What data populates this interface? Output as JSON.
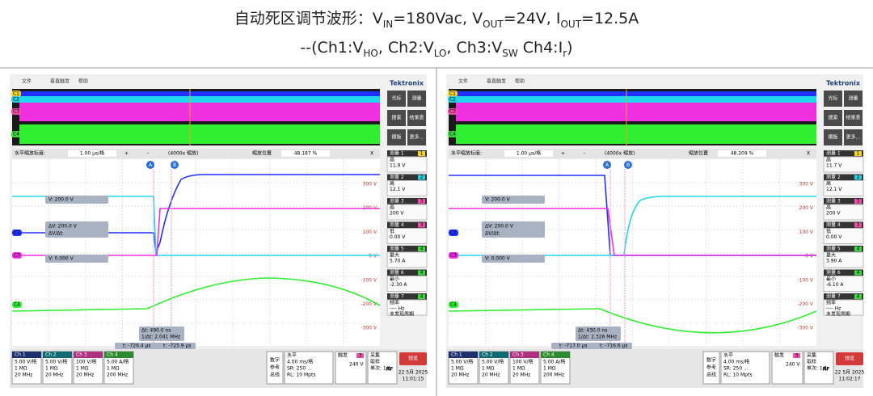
{
  "header": {
    "line1": [
      "自动死区调节波形：V",
      "IN",
      "=180Vac, V",
      "OUT",
      "=24V, I",
      "OUT",
      "=12.5A"
    ],
    "line2": [
      "--(Ch1:V",
      "HO",
      ", Ch2:V",
      "LO",
      ", Ch3:V",
      "SW",
      " Ch4:I",
      "r",
      ")"
    ]
  },
  "scopes": [
    {
      "menu": [
        "文件",
        "垂直触发",
        "帮助"
      ],
      "brand": "Tektronix",
      "overview_labels": [
        "C1",
        "C2",
        "C3",
        "C4"
      ],
      "buttons": [
        "光标",
        "测量",
        "搜索",
        "结果表",
        "模板",
        "更多..."
      ],
      "zoom": {
        "label": "水平缩放标度:",
        "scale": "1.00 μs/格",
        "plus": "+",
        "minus": "-",
        "factor": "(4000x 缩放)",
        "pos_label": "缩放位置",
        "pos": "48.187 %",
        "close": "X"
      },
      "markers": [
        "C1",
        "C3",
        "C4"
      ],
      "axis": [
        "300 V",
        "200 V",
        "100 V",
        "0 V",
        "-100 V",
        "-200 V",
        "-300 V"
      ],
      "cursors": {
        "a": "A",
        "b": "B",
        "v1": "V:   200.0 V",
        "dv": "ΔV:   200.0 V",
        "dvdt": "ΔV/Δt:",
        "v2": "V:   0.000 V",
        "dt": "Δt:   490.0 ns",
        "inv": "1/Δt: 2.041 MHz",
        "ta": "t: -726.4 μs",
        "tb": "t: -725.9 μs"
      },
      "measurements": [
        {
          "name": "测量 1",
          "ch": "1",
          "kind": "高",
          "value": "11.9 V"
        },
        {
          "name": "测量 2",
          "ch": "2",
          "kind": "高",
          "value": "12.1 V"
        },
        {
          "name": "测量 3",
          "ch": "3",
          "kind": "高",
          "value": "200 V"
        },
        {
          "name": "测量 4",
          "ch": "3",
          "kind": "低",
          "value": "0.00 V"
        },
        {
          "name": "测量 5",
          "ch": "4",
          "kind": "最大",
          "value": "5.70 A"
        },
        {
          "name": "测量 6",
          "ch": "4",
          "kind": "最小",
          "value": "-2.30 A"
        },
        {
          "name": "测量 7",
          "ch": "4",
          "kind": "频率",
          "value": "---- Hz",
          "note": "未发现周期"
        }
      ],
      "channel_settings": [
        {
          "name": "Ch 1",
          "lines": [
            "5.00 V/格",
            "1 MΩ",
            "20 MHz"
          ]
        },
        {
          "name": "Ch 2",
          "lines": [
            "5.00 V/格",
            "1 MΩ",
            "20 MHz"
          ]
        },
        {
          "name": "Ch 3",
          "lines": [
            "100 V/格",
            "1 MΩ",
            "20 MHz"
          ]
        },
        {
          "name": "Ch 4",
          "lines": [
            "5.00 A/格",
            "1 MΩ",
            "200 MHz"
          ]
        }
      ],
      "side_labels": [
        "数字",
        "参考",
        "总线"
      ],
      "horizontal": [
        "水平",
        "4.00 ms/格",
        "SR: 250 ...",
        "RL: 10 Mpts"
      ],
      "trigger": {
        "title": "触发",
        "ch": "3",
        "level": "240 V"
      },
      "acquire": [
        "采集",
        "取样",
        "单次: 1/1"
      ],
      "rf": "RF",
      "preview": "预览",
      "date": "22 5月 2025",
      "time": "11:01:15"
    },
    {
      "menu": [
        "文件",
        "垂直触发",
        "帮助"
      ],
      "brand": "Tektronix",
      "overview_labels": [
        "C1",
        "C2",
        "C3",
        "C4"
      ],
      "buttons": [
        "光标",
        "测量",
        "搜索",
        "结果表",
        "模板",
        "更多..."
      ],
      "zoom": {
        "label": "水平缩放标度:",
        "scale": "1.00 μs/格",
        "plus": "+",
        "minus": "-",
        "factor": "(4000x 缩放)",
        "pos_label": "缩放位置",
        "pos": "48.209 %",
        "close": "X"
      },
      "markers": [
        "C1",
        "C3",
        "C4"
      ],
      "axis": [
        "300 V",
        "200 V",
        "100 V",
        "0 V",
        "-100 V",
        "-200 V",
        "-300 V"
      ],
      "cursors": {
        "a": "A",
        "b": "B",
        "v1": "V:   200.0 V",
        "dv": "ΔV:   200.0 V",
        "dvdt": "ΔV/Δt:",
        "v2": "V:   0.000 V",
        "dt": "Δt:   430.0 ns",
        "inv": "1/Δt: 2.326 MHz",
        "ta": "t: -717.0 μs",
        "tb": "t: -716.6 μs"
      },
      "measurements": [
        {
          "name": "测量 1",
          "ch": "1",
          "kind": "高",
          "value": "11.7 V"
        },
        {
          "name": "测量 2",
          "ch": "2",
          "kind": "高",
          "value": "12.1 V"
        },
        {
          "name": "测量 3",
          "ch": "3",
          "kind": "高",
          "value": "200 V"
        },
        {
          "name": "测量 4",
          "ch": "3",
          "kind": "低",
          "value": "0.00 V"
        },
        {
          "name": "测量 5",
          "ch": "4",
          "kind": "最大",
          "value": "3.90 A"
        },
        {
          "name": "测量 6",
          "ch": "4",
          "kind": "最小",
          "value": "-6.10 A"
        },
        {
          "name": "测量 7",
          "ch": "4",
          "kind": "频率",
          "value": "---- Hz",
          "note": "未发现周期"
        }
      ],
      "channel_settings": [
        {
          "name": "Ch 1",
          "lines": [
            "5.00 V/格",
            "1 MΩ",
            "20 MHz"
          ]
        },
        {
          "name": "Ch 2",
          "lines": [
            "5.00 V/格",
            "1 MΩ",
            "20 MHz"
          ]
        },
        {
          "name": "Ch 3",
          "lines": [
            "100 V/格",
            "1 MΩ",
            "20 MHz"
          ]
        },
        {
          "name": "Ch 4",
          "lines": [
            "5.00 A/格",
            "1 MΩ",
            "200 MHz"
          ]
        }
      ],
      "side_labels": [
        "数字",
        "参考",
        "总线"
      ],
      "horizontal": [
        "水平",
        "4.00 ms/格",
        "SR: 250 ...",
        "RL: 10 Mpts"
      ],
      "trigger": {
        "title": "触发",
        "ch": "3",
        "level": "240 V"
      },
      "acquire": [
        "采集",
        "取样",
        "单次: 1/1"
      ],
      "rf": "RF",
      "preview": "预览",
      "date": "22 5月 2025",
      "time": "11:02:17"
    }
  ]
}
